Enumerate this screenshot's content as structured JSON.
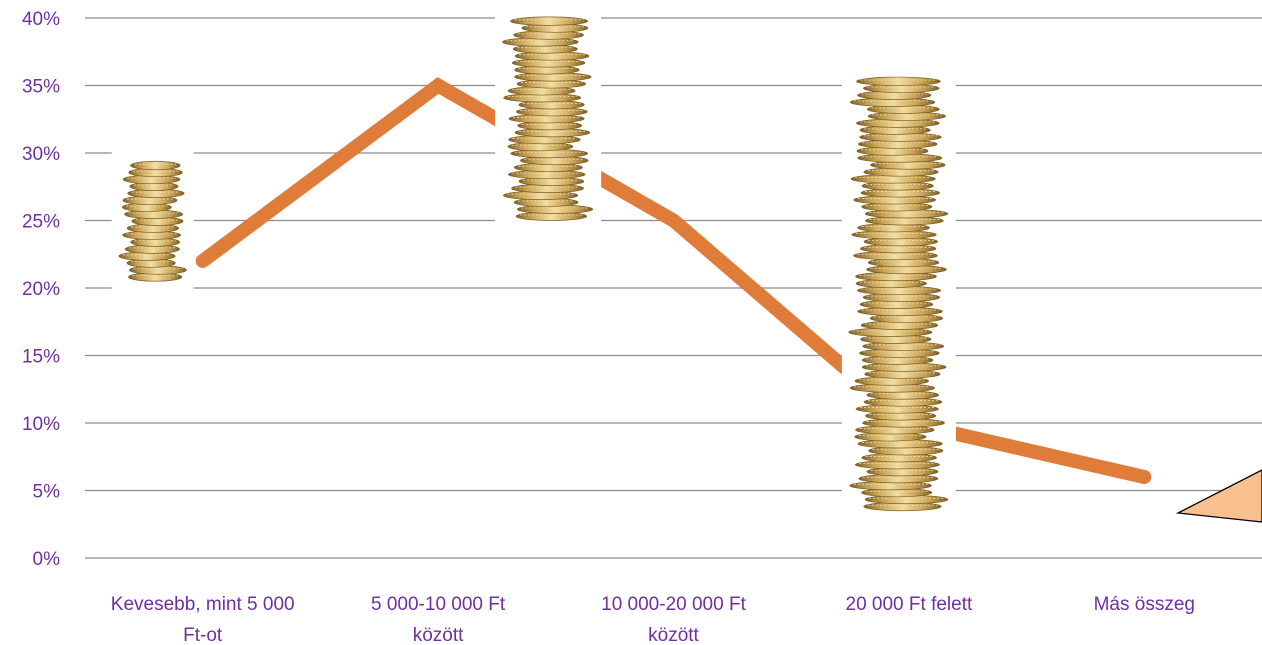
{
  "chart_data": {
    "type": "line",
    "title": "",
    "xlabel": "",
    "ylabel": "",
    "categories": [
      [
        "Kevesebb, mint 5 000",
        "Ft-ot"
      ],
      [
        "5 000-10 000 Ft",
        "között"
      ],
      [
        "10 000-20 000 Ft",
        "között"
      ],
      [
        "20 000 Ft felett"
      ],
      [
        "Más összeg"
      ]
    ],
    "series": [
      {
        "values": [
          0.22,
          0.35,
          0.25,
          0.1,
          0.06
        ]
      }
    ],
    "ylim": [
      0,
      0.4
    ],
    "y_ticks": [
      {
        "value": 0.4,
        "label": "40%"
      },
      {
        "value": 0.35,
        "label": "35%"
      },
      {
        "value": 0.3,
        "label": "30%"
      },
      {
        "value": 0.25,
        "label": "25%"
      },
      {
        "value": 0.2,
        "label": "20%"
      },
      {
        "value": 0.15,
        "label": "15%"
      },
      {
        "value": 0.1,
        "label": "10%"
      },
      {
        "value": 0.05,
        "label": "5%"
      },
      {
        "value": 0.0,
        "label": "0%"
      }
    ],
    "grid": true,
    "legend": "none",
    "colors": {
      "line": "#e07c3a",
      "grid": "#8c8c8c",
      "label_text": "#7030a0",
      "coin_light": "#f2dea3",
      "coin_mid": "#c9a458",
      "coin_dark": "#7d5e24",
      "callout_fill": "#f9c08f"
    },
    "decorations": [
      "coin-stack-icon",
      "coin-stack-icon",
      "coin-stack-icon",
      "callout-shape"
    ]
  }
}
